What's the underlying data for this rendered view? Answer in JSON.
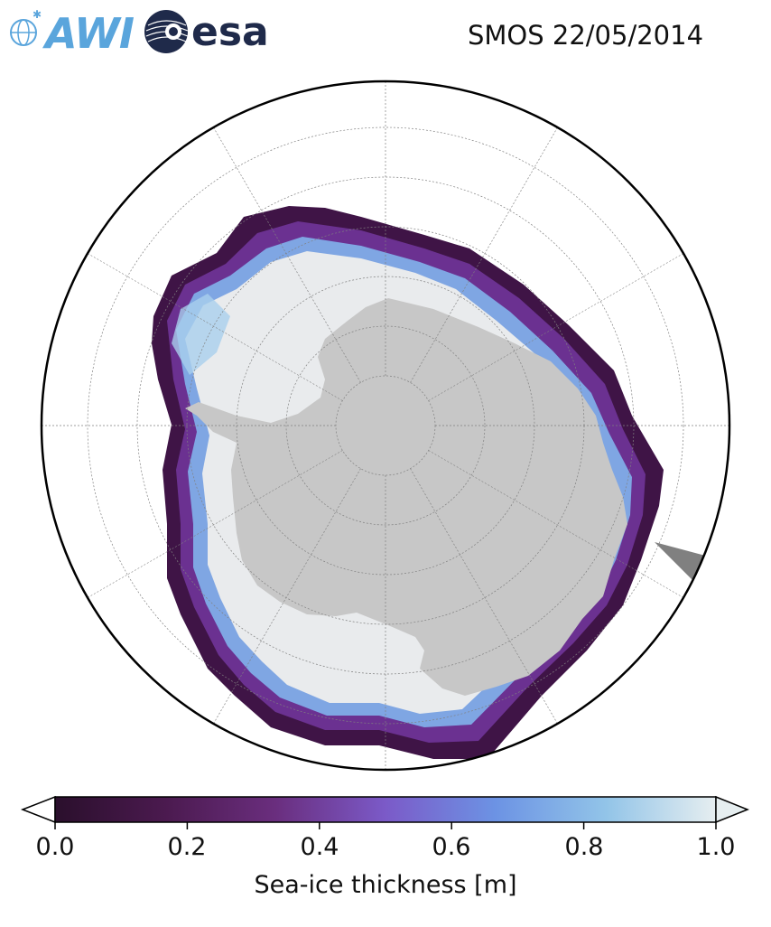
{
  "header": {
    "awi_logo_text": "AWI",
    "esa_logo_text": "esa",
    "title": "SMOS 22/05/2014"
  },
  "map": {
    "projection": "south-polar-stereographic",
    "land_color": "#c8c8c8",
    "ocean_color": "#ffffff",
    "grid_color": "#808080",
    "no_data_color": "#808080"
  },
  "colorbar": {
    "label": "Sea-ice thickness [m]",
    "ticks": [
      "0.0",
      "0.2",
      "0.4",
      "0.6",
      "0.8",
      "1.0"
    ],
    "range": [
      0.0,
      1.0
    ],
    "colormap_stops": [
      "#2a0f2c",
      "#4b1a4f",
      "#6a2e7e",
      "#7b5ac8",
      "#6c93e4",
      "#92c4e8",
      "#e6eef0"
    ],
    "extend": "both"
  }
}
